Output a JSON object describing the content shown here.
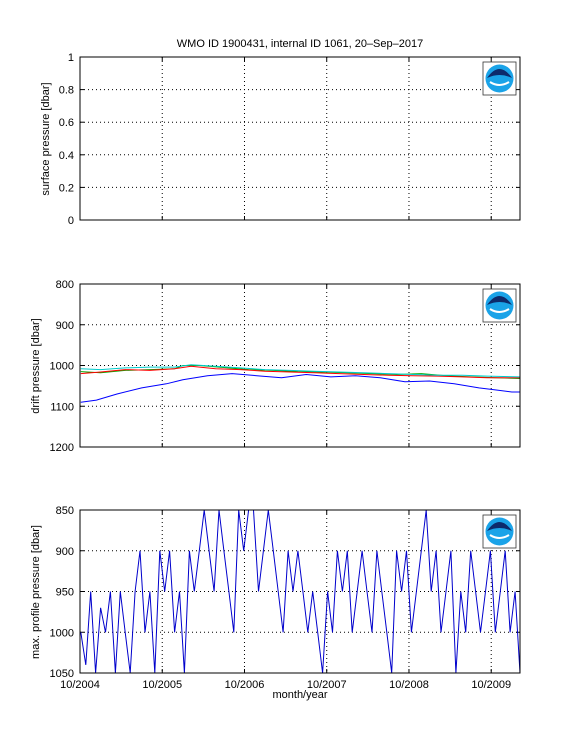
{
  "chart_data": [
    {
      "type": "line",
      "title": "WMO ID 1900431, internal ID 1061, 20–Sep–2017",
      "ylabel": "surface pressure [dbar]",
      "xlabel": "",
      "ylim": [
        0,
        1
      ],
      "y_reversed": false,
      "yticks": [
        "0",
        "0.2",
        "0.4",
        "0.6",
        "0.8",
        "1"
      ],
      "xlim": [
        2004.75,
        2010.1
      ],
      "grid": "dotted",
      "logo": "noaa-logo",
      "series": []
    },
    {
      "type": "line",
      "ylabel": "drift pressure [dbar]",
      "xlabel": "",
      "ylim": [
        800,
        1200
      ],
      "y_reversed": true,
      "yticks": [
        "800",
        "900",
        "1000",
        "1100",
        "1200"
      ],
      "xlim": [
        2004.75,
        2010.1
      ],
      "grid": "dotted",
      "logo": "noaa-logo",
      "series": [
        {
          "color": "#0000ff",
          "x": [
            2004.76,
            2004.95,
            2005.2,
            2005.5,
            2005.8,
            2006.0,
            2006.3,
            2006.6,
            2006.9,
            2007.2,
            2007.5,
            2007.8,
            2008.1,
            2008.4,
            2008.7,
            2009.0,
            2009.3,
            2009.6,
            2009.8,
            2010.0,
            2010.1
          ],
          "y": [
            1090,
            1085,
            1070,
            1055,
            1045,
            1035,
            1025,
            1020,
            1025,
            1030,
            1022,
            1028,
            1025,
            1030,
            1040,
            1038,
            1045,
            1055,
            1060,
            1065,
            1065
          ]
        },
        {
          "color": "#00aa00",
          "x": [
            2004.76,
            2005.0,
            2005.3,
            2005.6,
            2005.9,
            2006.0,
            2006.2,
            2006.5,
            2006.8,
            2007.1,
            2007.4,
            2007.7,
            2008.0,
            2008.3,
            2008.6,
            2008.9,
            2009.2,
            2009.5,
            2009.8,
            2010.1
          ],
          "y": [
            1015,
            1018,
            1012,
            1010,
            1008,
            1000,
            1000,
            1005,
            1010,
            1012,
            1015,
            1016,
            1018,
            1020,
            1022,
            1020,
            1025,
            1028,
            1030,
            1032
          ]
        },
        {
          "color": "#ff0000",
          "x": [
            2004.76,
            2005.0,
            2005.3,
            2005.6,
            2005.9,
            2006.1,
            2006.4,
            2006.7,
            2007.0,
            2007.3,
            2007.6,
            2007.9,
            2008.2,
            2008.5,
            2008.8,
            2009.1,
            2009.4,
            2009.7,
            2010.1
          ],
          "y": [
            1020,
            1016,
            1010,
            1012,
            1008,
            1002,
            1008,
            1010,
            1014,
            1016,
            1018,
            1020,
            1022,
            1024,
            1025,
            1026,
            1028,
            1030,
            1030
          ]
        },
        {
          "color": "#00cccc",
          "x": [
            2004.76,
            2005.0,
            2005.3,
            2005.6,
            2005.9,
            2006.1,
            2006.4,
            2006.7,
            2007.0,
            2007.3,
            2007.6,
            2007.9,
            2008.2,
            2008.5,
            2008.8,
            2009.1,
            2009.4,
            2009.7,
            2010.1
          ],
          "y": [
            1008,
            1010,
            1006,
            1004,
            1004,
            998,
            1002,
            1006,
            1010,
            1012,
            1014,
            1016,
            1018,
            1020,
            1022,
            1024,
            1024,
            1026,
            1028
          ]
        }
      ]
    },
    {
      "type": "line",
      "ylabel": "max. profile pressure [dbar]",
      "xlabel": "month/year",
      "ylim": [
        850,
        1050
      ],
      "y_reversed": true,
      "yticks": [
        "850",
        "900",
        "950",
        "1000",
        "1050"
      ],
      "xlim": [
        2004.75,
        2010.1
      ],
      "xticks": [
        {
          "x": 2004.75,
          "label": "10/2004"
        },
        {
          "x": 2005.75,
          "label": "10/2005"
        },
        {
          "x": 2006.75,
          "label": "10/2006"
        },
        {
          "x": 2007.75,
          "label": "10/2007"
        },
        {
          "x": 2008.75,
          "label": "10/2008"
        },
        {
          "x": 2009.75,
          "label": "10/2009"
        }
      ],
      "grid": "dotted",
      "logo": "noaa-logo",
      "series": [
        {
          "color": "#0000cc",
          "x": [
            2004.76,
            2004.82,
            2004.88,
            2004.94,
            2005.0,
            2005.06,
            2005.12,
            2005.18,
            2005.24,
            2005.3,
            2005.36,
            2005.42,
            2005.48,
            2005.54,
            2005.6,
            2005.66,
            2005.72,
            2005.78,
            2005.84,
            2005.9,
            2005.96,
            2006.02,
            2006.08,
            2006.14,
            2006.2,
            2006.26,
            2006.32,
            2006.38,
            2006.44,
            2006.5,
            2006.56,
            2006.62,
            2006.68,
            2006.74,
            2006.8,
            2006.86,
            2006.92,
            2006.98,
            2007.04,
            2007.1,
            2007.16,
            2007.22,
            2007.28,
            2007.34,
            2007.4,
            2007.46,
            2007.52,
            2007.58,
            2007.64,
            2007.7,
            2007.76,
            2007.82,
            2007.88,
            2007.94,
            2008.0,
            2008.06,
            2008.12,
            2008.18,
            2008.24,
            2008.3,
            2008.36,
            2008.42,
            2008.48,
            2008.54,
            2008.6,
            2008.66,
            2008.72,
            2008.78,
            2008.84,
            2008.9,
            2008.96,
            2009.02,
            2009.08,
            2009.14,
            2009.2,
            2009.26,
            2009.32,
            2009.38,
            2009.44,
            2009.5,
            2009.56,
            2009.62,
            2009.68,
            2009.74,
            2009.8,
            2009.86,
            2009.92,
            2009.98,
            2010.04,
            2010.1
          ],
          "y": [
            1000,
            1040,
            950,
            1050,
            970,
            1000,
            950,
            1050,
            950,
            1000,
            1050,
            950,
            900,
            1000,
            950,
            1050,
            900,
            950,
            900,
            1000,
            950,
            1050,
            900,
            950,
            900,
            850,
            900,
            950,
            850,
            900,
            950,
            1000,
            850,
            900,
            850,
            850,
            950,
            900,
            850,
            900,
            950,
            1000,
            900,
            950,
            900,
            950,
            1000,
            950,
            1000,
            1050,
            950,
            1000,
            900,
            950,
            900,
            1000,
            950,
            900,
            950,
            1000,
            900,
            950,
            1000,
            1050,
            900,
            950,
            900,
            1000,
            950,
            900,
            850,
            950,
            900,
            1000,
            950,
            900,
            1050,
            950,
            1000,
            900,
            950,
            1000,
            950,
            900,
            1000,
            950,
            900,
            1000,
            950,
            1050
          ]
        }
      ]
    }
  ]
}
